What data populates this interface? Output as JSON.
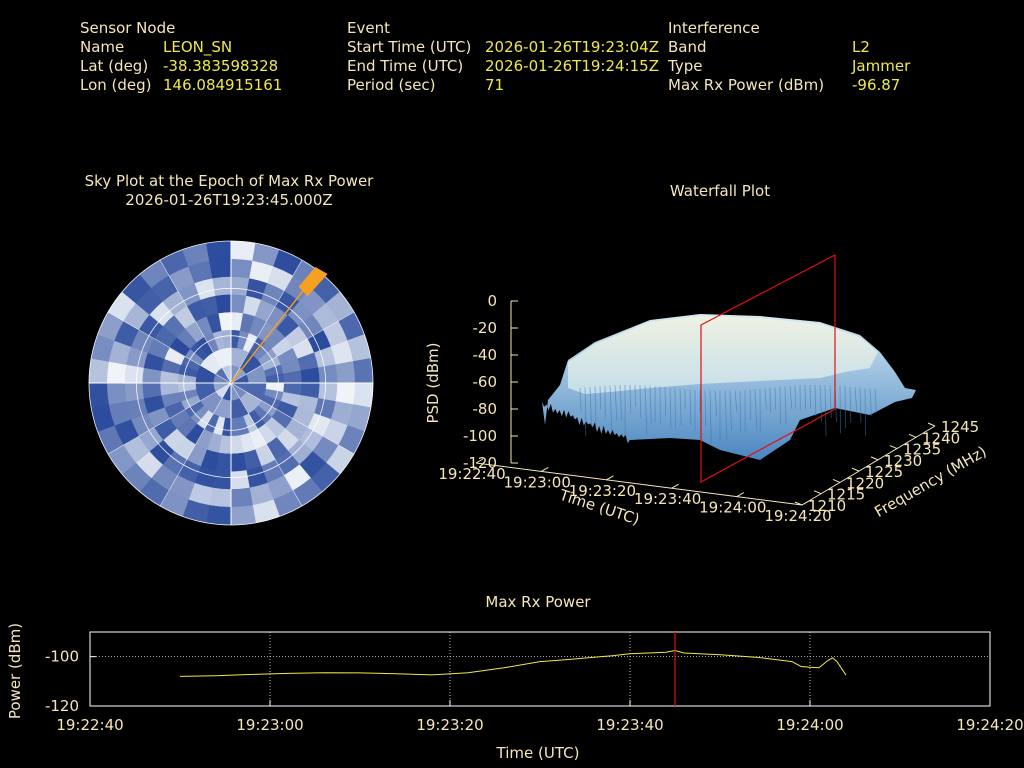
{
  "header": {
    "sensor": {
      "title": "Sensor Node",
      "name_label": "Name",
      "name_value": "LEON_SN",
      "lat_label": "Lat (deg)",
      "lat_value": "-38.383598328",
      "lon_label": "Lon (deg)",
      "lon_value": "146.084915161"
    },
    "event": {
      "title": "Event",
      "start_label": "Start Time (UTC)",
      "start_value": "2026-01-26T19:23:04Z",
      "end_label": "End Time (UTC)",
      "end_value": "2026-01-26T19:24:15Z",
      "period_label": "Period (sec)",
      "period_value": "71"
    },
    "interference": {
      "title": "Interference",
      "band_label": "Band",
      "band_value": "L2",
      "type_label": "Type",
      "type_value": "Jammer",
      "power_label": "Max Rx Power (dBm)",
      "power_value": "-96.87"
    }
  },
  "colors": {
    "label": "#f5e6b8",
    "value": "#f0e84a",
    "marker": "#e01010",
    "trace": "#f0e84a",
    "grid": "#ffffff",
    "sky_dark": "#2a4a9c",
    "sky_light": "#f2f6fa",
    "jammer": "#f5a020"
  },
  "chart_data": [
    {
      "type": "polar-heatmap",
      "title": "Sky Plot at the Epoch of Max Rx Power",
      "subtitle": "2026-01-26T19:23:45.000Z",
      "interference_direction": {
        "azimuth_deg": 38,
        "elevation_deg": 8
      }
    },
    {
      "type": "surface-3d",
      "title": "Waterfall Plot",
      "xlabel": "Time (UTC)",
      "ylabel": "Frequency (MHz)",
      "zlabel": "PSD (dBm)",
      "x_ticks": [
        "19:22:40",
        "19:23:00",
        "19:23:20",
        "19:23:40",
        "19:24:00",
        "19:24:20"
      ],
      "y_ticks": [
        "1210",
        "1215",
        "1220",
        "1225",
        "1230",
        "1235",
        "1240",
        "1245"
      ],
      "z_ticks": [
        "0",
        "-20",
        "-40",
        "-60",
        "-80",
        "-100",
        "-120"
      ],
      "zlim": [
        -120,
        0
      ],
      "marker_time": "19:23:45"
    },
    {
      "type": "line",
      "title": "Max Rx Power",
      "xlabel": "Time (UTC)",
      "ylabel": "Power (dBm)",
      "x_ticks": [
        "19:22:40",
        "19:23:00",
        "19:23:20",
        "19:23:40",
        "19:24:00",
        "19:24:20"
      ],
      "y_ticks": [
        "-100",
        "-120"
      ],
      "xlim_sec": [
        0,
        100
      ],
      "ylim": [
        -120,
        -90
      ],
      "marker_sec": 65,
      "series": [
        {
          "x": [
            10,
            14,
            18,
            22,
            26,
            30,
            34,
            38,
            42,
            46,
            50,
            53,
            56,
            58,
            60,
            62,
            64,
            65,
            66,
            70,
            74,
            78,
            79,
            80,
            81,
            82,
            82.5,
            83,
            84
          ],
          "y": [
            -108,
            -107.7,
            -107.2,
            -106.8,
            -106.5,
            -106.6,
            -106.9,
            -107.4,
            -106.5,
            -104.5,
            -102,
            -101.2,
            -100.2,
            -99.6,
            -98.8,
            -98.5,
            -98.2,
            -97.5,
            -98.5,
            -99.2,
            -100.2,
            -102,
            -104,
            -104.3,
            -104.5,
            -101.5,
            -100.5,
            -102,
            -107.5
          ]
        }
      ]
    }
  ]
}
